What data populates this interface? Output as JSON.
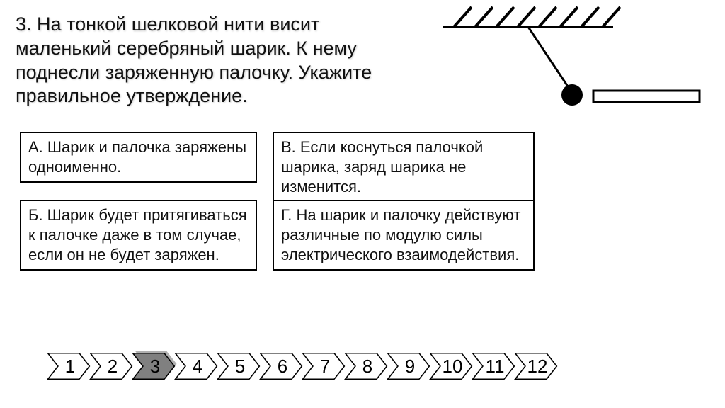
{
  "question": {
    "text": "3. На тонкой шелковой нити висит маленький серебряный шарик. К нему поднесли заряженную палочку. Укажите правильное утверждение."
  },
  "options": {
    "a": "А. Шарик и палочка заряжены одноименно.",
    "b": "Б. Шарик будет притягиваться к палочке даже в том случае, если он не будет заряжен.",
    "v": "В. Если коснуться палочкой шарика, заряд шарика не изменится.",
    "g": "Г. На шарик и палочку действуют различные по модулю силы электрического взаимодействия."
  },
  "diagram": {
    "type": "diagram",
    "ceiling_hatch_lines": 8,
    "ceiling_width": 240,
    "thread_deflection": "right",
    "ball_radius": 14,
    "rod_width": 160,
    "rod_height": 16,
    "stroke_color": "#000000",
    "ball_fill": "#000000"
  },
  "nav": {
    "items": [
      "1",
      "2",
      "3",
      "4",
      "5",
      "6",
      "7",
      "8",
      "9",
      "10",
      "11",
      "12"
    ],
    "active_index": 2,
    "fill_inactive": "#ffffff",
    "fill_active": "#808080",
    "fill_active_shadow": "#b0b0b0",
    "stroke": "#000000",
    "stroke_width": 2
  },
  "colors": {
    "text": "#111111",
    "border": "#000000",
    "background": "#ffffff"
  }
}
